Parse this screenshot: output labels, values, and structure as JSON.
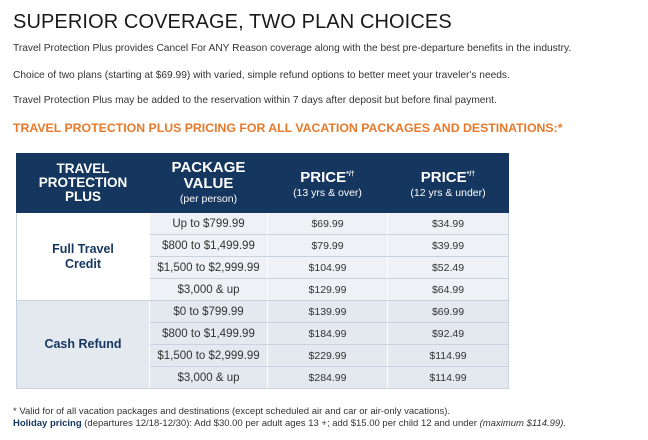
{
  "title": "SUPERIOR COVERAGE, TWO PLAN CHOICES",
  "paragraphs": [
    "Travel Protection Plus provides Cancel For ANY Reason coverage along with the best pre-departure benefits in the industry.",
    "Choice of two plans (starting at $69.99) with varied, simple refund options to better meet your traveler's needs.",
    "Travel Protection Plus may be added to the reservation within 7 days after deposit but before final payment."
  ],
  "pricing_heading": "TRAVEL PROTECTION PLUS PRICING FOR ALL VACATION PACKAGES AND DESTINATIONS:*",
  "table": {
    "headers": {
      "plan_l1": "TRAVEL",
      "plan_l2": "PROTECTION",
      "plan_l3": "PLUS",
      "value_l1": "PACKAGE",
      "value_l2": "VALUE",
      "value_sub": "(per person)",
      "price_adult": "PRICE",
      "price_adult_sup": "*/†",
      "price_adult_sub": "(13 yrs & over)",
      "price_child": "PRICE",
      "price_child_sup": "*/†",
      "price_child_sub": "(12 yrs & under)"
    },
    "plans": [
      {
        "name_l1": "Full Travel",
        "name_l2": "Credit",
        "rows": [
          {
            "value": "Up to $799.99",
            "adult": "$69.99",
            "child": "$34.99"
          },
          {
            "value": "$800 to $1,499.99",
            "adult": "$79.99",
            "child": "$39.99"
          },
          {
            "value": "$1,500 to $2,999.99",
            "adult": "$104.99",
            "child": "$52.49"
          },
          {
            "value": "$3,000 & up",
            "adult": "$129.99",
            "child": "$64.99"
          }
        ]
      },
      {
        "name_l1": "Cash Refund",
        "name_l2": "",
        "rows": [
          {
            "value": "$0 to $799.99",
            "adult": "$139.99",
            "child": "$69.99"
          },
          {
            "value": "$800 to $1,499.99",
            "adult": "$184.99",
            "child": "$92.49"
          },
          {
            "value": "$1,500 to $2,999.99",
            "adult": "$229.99",
            "child": "$114.99"
          },
          {
            "value": "$3,000 & up",
            "adult": "$284.99",
            "child": "$114.99"
          }
        ]
      }
    ]
  },
  "footnotes": {
    "valid": "* Valid for of all vacation packages and destinations (except scheduled air and car or air-only vacations).",
    "holiday_label": "Holiday pricing",
    "holiday_text": " (departures 12/18-12/30): Add $30.00 per adult ages 13 +; add $15.00 per child 12 and under ",
    "holiday_max": "(maximum $114.99)."
  },
  "colors": {
    "header_bg": "#14365f",
    "accent_orange": "#e8792b",
    "row_shade": "#e4e9ef"
  }
}
